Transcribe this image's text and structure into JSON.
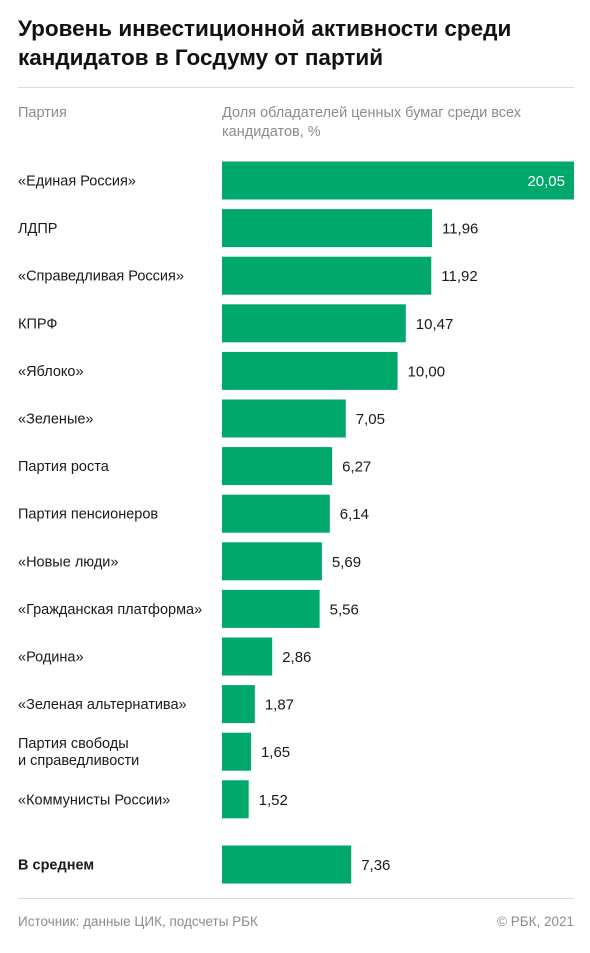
{
  "title": "Уровень инвестиционной активности среди кандидатов в Госдуму от партий",
  "header": {
    "col1": "Партия",
    "col2": "Доля обладателей ценных бумаг среди всех кандидатов, %"
  },
  "chart_data": {
    "type": "bar",
    "orientation": "horizontal",
    "color": "#00A86B",
    "categories": [
      "«Единая Россия»",
      "ЛДПР",
      "«Справедливая Россия»",
      "КПРФ",
      "«Яблоко»",
      "«Зеленые»",
      "Партия роста",
      "Партия пенсионеров",
      "«Новые люди»",
      "«Гражданская платформа»",
      "«Родина»",
      "«Зеленая альтернатива»",
      "Партия свободы\nи справедливости",
      "«Коммунисты России»"
    ],
    "values": [
      20.05,
      11.96,
      11.92,
      10.47,
      10.0,
      7.05,
      6.27,
      6.14,
      5.69,
      5.56,
      2.86,
      1.87,
      1.65,
      1.52
    ],
    "value_labels": [
      "20,05",
      "11,96",
      "11,92",
      "10,47",
      "10,00",
      "7,05",
      "6,27",
      "6,14",
      "5,69",
      "5,56",
      "2,86",
      "1,87",
      "1,65",
      "1,52"
    ],
    "average": {
      "label": "В среднем",
      "value": 7.36,
      "value_label": "7,36"
    }
  },
  "footer": {
    "source": "Источник:  данные ЦИК, подсчеты РБК",
    "copyright": "©  РБК, 2021"
  }
}
